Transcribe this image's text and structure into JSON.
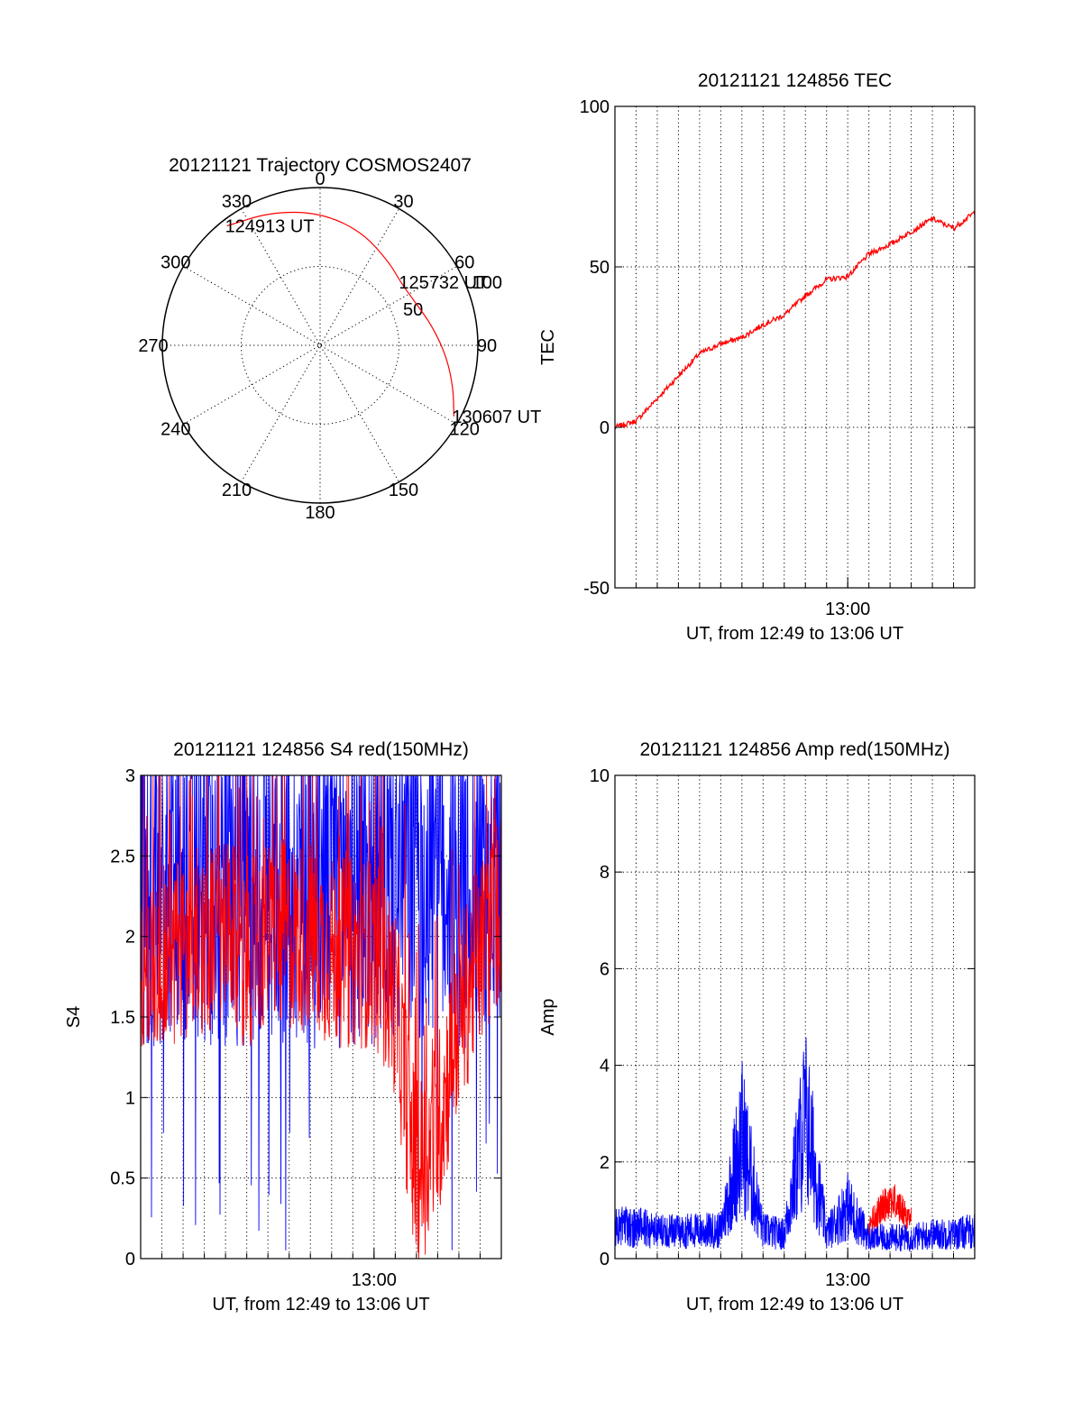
{
  "colors": {
    "red": "#ff0000",
    "blue": "#0000ff",
    "axis": "#000000"
  },
  "chart_data": [
    {
      "id": "trajectory",
      "type": "polar",
      "title": "20121121 Trajectory COSMOS2407",
      "angle_labels": [
        "0",
        "30",
        "60",
        "90",
        "120",
        "150",
        "180",
        "210",
        "240",
        "270",
        "300",
        "330"
      ],
      "radial_labels": [
        "50",
        "100"
      ],
      "point_labels": [
        {
          "text": "124913 UT",
          "azimuth": 322,
          "elevation": 10
        },
        {
          "text": "125732 UT",
          "azimuth": 52,
          "elevation": 36
        },
        {
          "text": "130607 UT",
          "azimuth": 118,
          "elevation": 10
        }
      ],
      "track": {
        "color": "red",
        "points": [
          {
            "azimuth": 322,
            "elevation": 10
          },
          {
            "azimuth": 340,
            "elevation": 15
          },
          {
            "azimuth": 0,
            "elevation": 20
          },
          {
            "azimuth": 20,
            "elevation": 26
          },
          {
            "azimuth": 40,
            "elevation": 33
          },
          {
            "azimuth": 52,
            "elevation": 36
          },
          {
            "azimuth": 65,
            "elevation": 35
          },
          {
            "azimuth": 80,
            "elevation": 30
          },
          {
            "azimuth": 95,
            "elevation": 23
          },
          {
            "azimuth": 108,
            "elevation": 16
          },
          {
            "azimuth": 118,
            "elevation": 10
          }
        ]
      }
    },
    {
      "id": "tec",
      "type": "line",
      "title": "20121121 124856 TEC",
      "xlabel": "UT, from 12:49 to 13:06 UT",
      "ylabel": "TEC",
      "xlim": [
        "12:49",
        "13:06"
      ],
      "ylim": [
        -50,
        100
      ],
      "yticks": [
        "100",
        "50",
        "0",
        "-50"
      ],
      "xtick_labels": [
        "13:00"
      ],
      "grid": true,
      "series": [
        {
          "color": "red",
          "x": [
            "12:49",
            "12:50",
            "12:51",
            "12:52",
            "12:53",
            "12:54",
            "12:55",
            "12:56",
            "12:57",
            "12:58",
            "12:59",
            "13:00",
            "13:01",
            "13:02",
            "13:03",
            "13:04",
            "13:05",
            "13:06"
          ],
          "y": [
            0,
            2,
            9,
            16,
            23,
            26,
            28,
            32,
            35,
            41,
            46,
            47,
            54,
            57,
            61,
            65,
            62,
            67
          ]
        }
      ]
    },
    {
      "id": "s4",
      "type": "line",
      "title": "20121121 124856 S4 red(150MHz)",
      "xlabel": "UT, from 12:49 to 13:06 UT",
      "ylabel": "S4",
      "xlim": [
        "12:49",
        "13:06"
      ],
      "ylim": [
        0,
        3
      ],
      "yticks": [
        "3",
        "2.5",
        "2",
        "1.5",
        "1",
        "0.5",
        "0"
      ],
      "xtick_labels": [
        "13:00"
      ],
      "grid": true,
      "series": [
        {
          "color": "blue",
          "note_values": "noisy signal, 1.2-3 with drop-outs to 0",
          "x": [
            "12:49",
            "12:50",
            "12:51",
            "12:52",
            "12:53",
            "12:54",
            "12:55",
            "12:56",
            "12:57",
            "12:58",
            "12:59",
            "13:00",
            "13:01",
            "13:02",
            "13:03",
            "13:04",
            "13:05",
            "13:06"
          ],
          "y": [
            2.2,
            2.4,
            2.3,
            2.2,
            2.5,
            2.3,
            2.4,
            2.3,
            2.2,
            2.4,
            2.3,
            2.2,
            2.4,
            2.3,
            2.4,
            2.3,
            2.4,
            2.5
          ]
        },
        {
          "color": "red",
          "x": [
            "12:49",
            "12:50",
            "12:51",
            "12:52",
            "12:53",
            "12:54",
            "12:55",
            "12:56",
            "12:57",
            "12:58",
            "12:59",
            "13:00",
            "13:01",
            "13:02",
            "13:03",
            "13:04",
            "13:05",
            "13:06"
          ],
          "y": [
            1.8,
            1.9,
            1.9,
            2.0,
            2.0,
            1.9,
            2.0,
            2.0,
            2.0,
            1.9,
            1.9,
            1.9,
            1.6,
            0.5,
            0.8,
            1.5,
            1.9,
            2.2
          ]
        }
      ]
    },
    {
      "id": "amp",
      "type": "line",
      "title": "20121121 124856 Amp red(150MHz)",
      "xlabel": "UT, from 12:49 to 13:06 UT",
      "ylabel": "Amp",
      "xlim": [
        "12:49",
        "13:06"
      ],
      "ylim": [
        0,
        10
      ],
      "yticks": [
        "10",
        "8",
        "6",
        "4",
        "2",
        "0"
      ],
      "xtick_labels": [
        "13:00"
      ],
      "grid": true,
      "series": [
        {
          "color": "blue",
          "x": [
            "12:49",
            "12:50",
            "12:51",
            "12:52",
            "12:53",
            "12:54",
            "12:55",
            "12:56",
            "12:57",
            "12:58",
            "12:59",
            "13:00",
            "13:01",
            "13:02",
            "13:03",
            "13:04",
            "13:05",
            "13:06"
          ],
          "y": [
            0.9,
            0.9,
            0.8,
            0.8,
            0.8,
            0.8,
            3.5,
            0.8,
            0.7,
            4.1,
            0.7,
            1.5,
            0.6,
            0.6,
            0.6,
            0.7,
            0.7,
            0.8
          ]
        },
        {
          "color": "red",
          "x": [
            "13:01",
            "13:02",
            "13:03"
          ],
          "y": [
            0.8,
            1.4,
            0.9
          ]
        }
      ]
    }
  ]
}
